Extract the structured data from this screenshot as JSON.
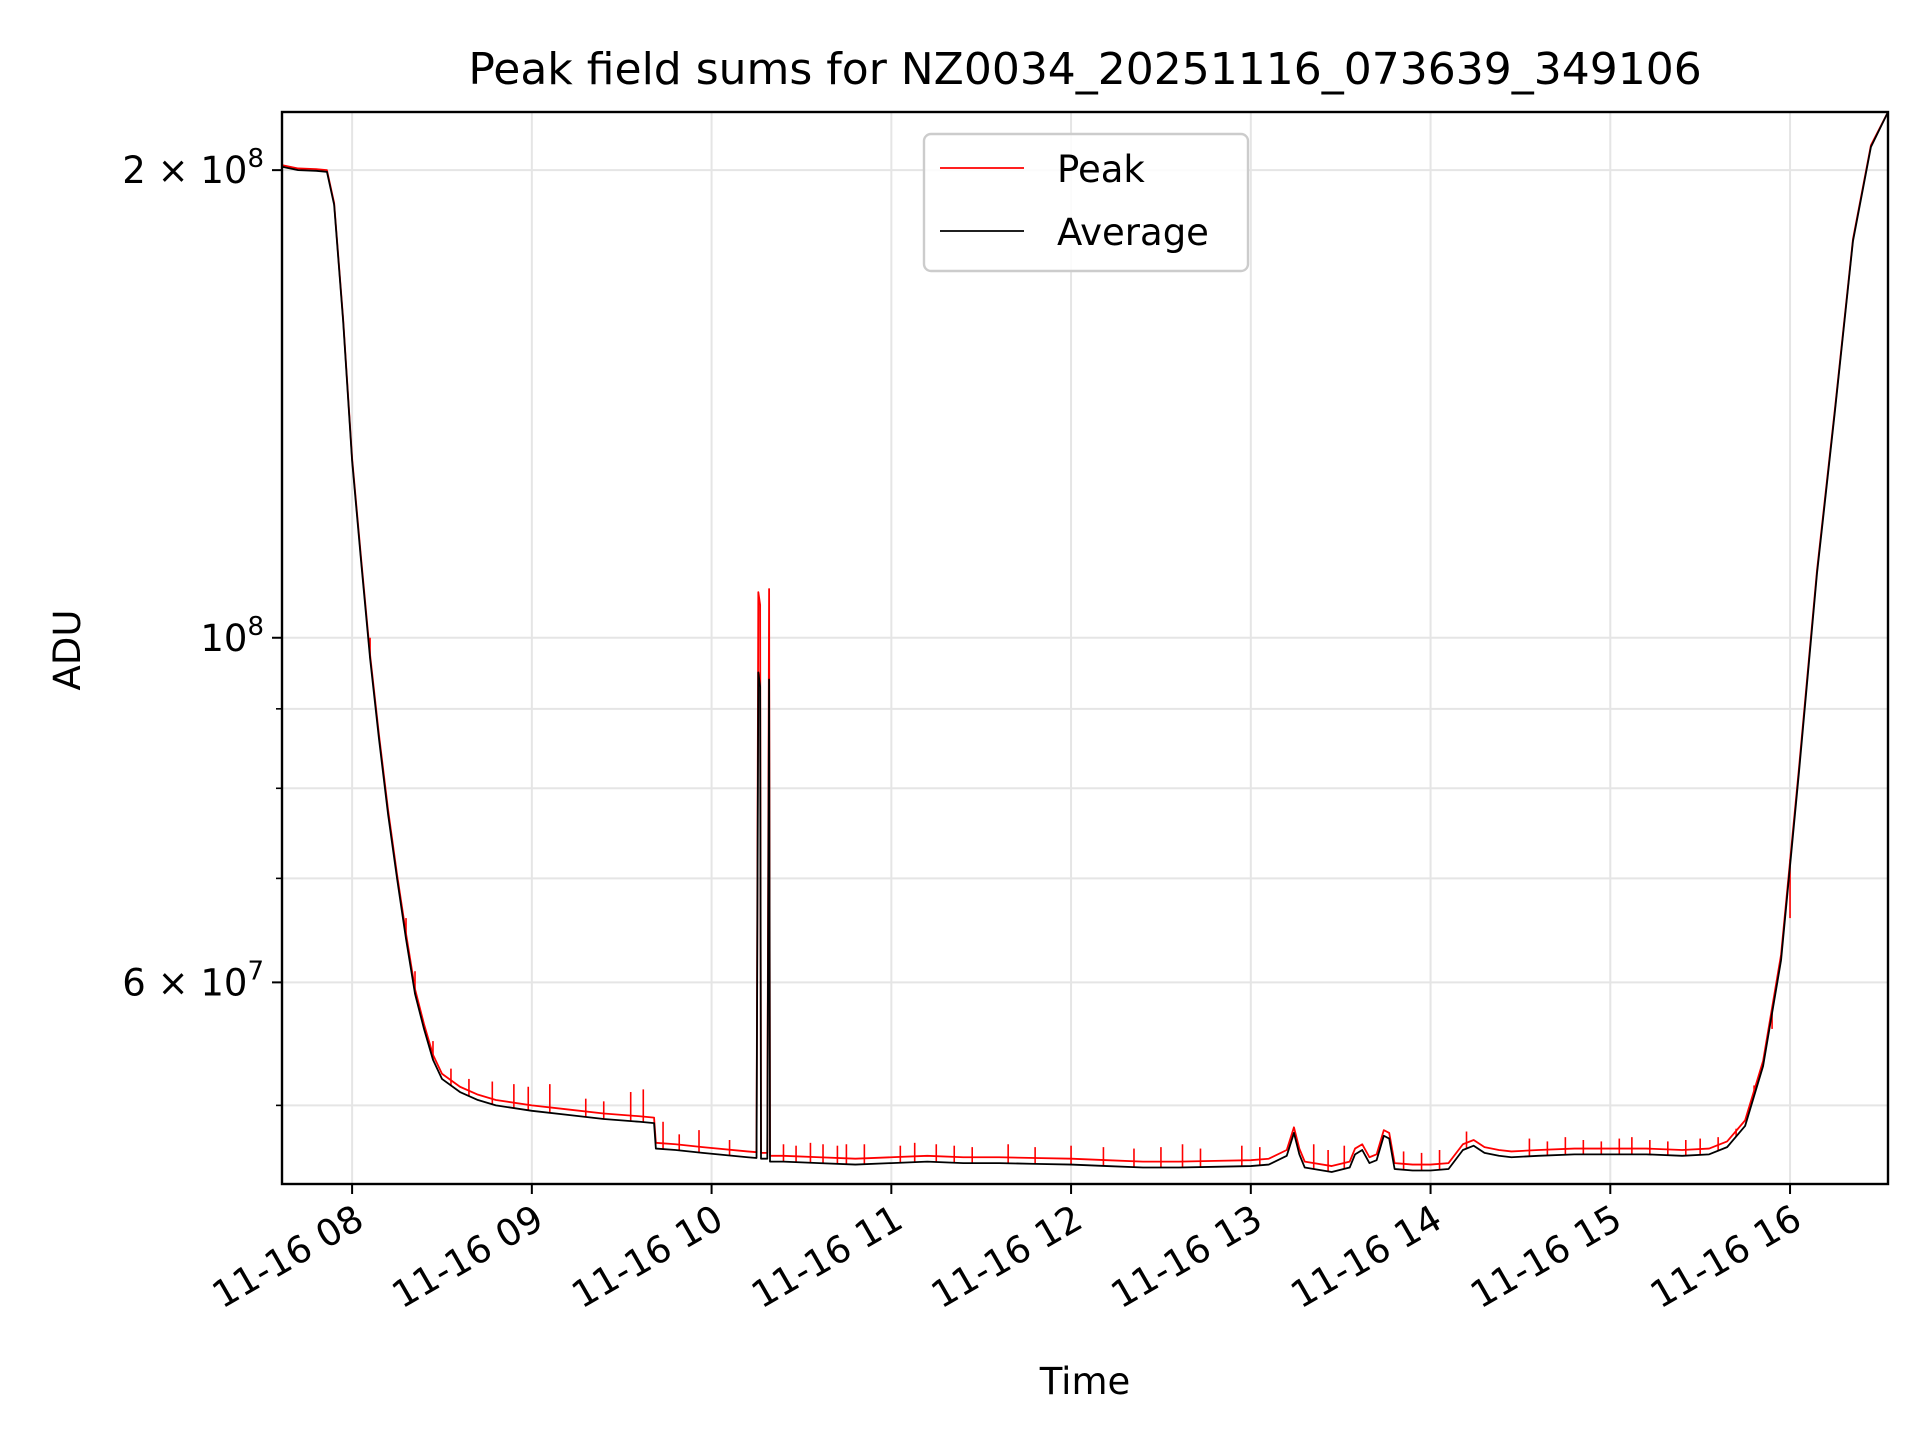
{
  "chart_data": {
    "type": "line",
    "title": "Peak field sums for NZ0034_20251116_073639_349106",
    "xlabel": "Time",
    "ylabel": "ADU",
    "y_scale": "log",
    "x_unit": "hours since 11-16 00:00",
    "xlim": [
      7.61,
      16.545
    ],
    "ylim": [
      44500000,
      218000000
    ],
    "grid": true,
    "legend_position": "upper-center",
    "x_ticks": [
      {
        "value": 8,
        "label": "11-16 08"
      },
      {
        "value": 9,
        "label": "11-16 09"
      },
      {
        "value": 10,
        "label": "11-16 10"
      },
      {
        "value": 11,
        "label": "11-16 11"
      },
      {
        "value": 12,
        "label": "11-16 12"
      },
      {
        "value": 13,
        "label": "11-16 13"
      },
      {
        "value": 14,
        "label": "11-16 14"
      },
      {
        "value": 15,
        "label": "11-16 15"
      },
      {
        "value": 16,
        "label": "11-16 16"
      }
    ],
    "y_major_ticks": [
      {
        "value": 60000000,
        "mantissa": "6 × 10",
        "exponent": "7"
      },
      {
        "value": 100000000,
        "mantissa": "10",
        "exponent": "8"
      },
      {
        "value": 200000000,
        "mantissa": "2 × 10",
        "exponent": "8"
      }
    ],
    "y_minor_ticks": [
      50000000,
      70000000,
      80000000,
      90000000
    ],
    "series": [
      {
        "name": "Average",
        "color": "#000000",
        "points": [
          [
            7.61,
            201000000
          ],
          [
            7.7,
            200000000
          ],
          [
            7.8,
            199800000
          ],
          [
            7.86,
            199500000
          ],
          [
            7.9,
            190000000
          ],
          [
            7.95,
            160000000
          ],
          [
            8.0,
            130000000
          ],
          [
            8.05,
            112000000
          ],
          [
            8.1,
            97000000
          ],
          [
            8.15,
            86000000
          ],
          [
            8.2,
            77000000
          ],
          [
            8.25,
            70000000
          ],
          [
            8.3,
            64000000
          ],
          [
            8.35,
            59000000
          ],
          [
            8.4,
            56000000
          ],
          [
            8.45,
            53500000
          ],
          [
            8.5,
            52000000
          ],
          [
            8.6,
            51000000
          ],
          [
            8.7,
            50400000
          ],
          [
            8.8,
            50000000
          ],
          [
            9.0,
            49600000
          ],
          [
            9.2,
            49300000
          ],
          [
            9.4,
            49000000
          ],
          [
            9.6,
            48800000
          ],
          [
            9.68,
            48700000
          ],
          [
            9.69,
            46900000
          ],
          [
            9.8,
            46800000
          ],
          [
            9.95,
            46600000
          ],
          [
            10.2,
            46300000
          ],
          [
            10.25,
            46250000
          ],
          [
            10.26,
            95000000
          ],
          [
            10.27,
            93000000
          ],
          [
            10.275,
            46200000
          ],
          [
            10.31,
            46200000
          ],
          [
            10.32,
            94000000
          ],
          [
            10.325,
            46000000
          ],
          [
            10.4,
            46000000
          ],
          [
            10.6,
            45900000
          ],
          [
            10.8,
            45800000
          ],
          [
            11.0,
            45900000
          ],
          [
            11.2,
            46000000
          ],
          [
            11.4,
            45900000
          ],
          [
            11.6,
            45900000
          ],
          [
            11.8,
            45850000
          ],
          [
            12.0,
            45800000
          ],
          [
            12.2,
            45700000
          ],
          [
            12.4,
            45600000
          ],
          [
            12.6,
            45600000
          ],
          [
            12.8,
            45650000
          ],
          [
            13.0,
            45700000
          ],
          [
            13.1,
            45800000
          ],
          [
            13.2,
            46400000
          ],
          [
            13.24,
            48000000
          ],
          [
            13.27,
            46500000
          ],
          [
            13.3,
            45600000
          ],
          [
            13.45,
            45300000
          ],
          [
            13.55,
            45600000
          ],
          [
            13.58,
            46500000
          ],
          [
            13.62,
            46800000
          ],
          [
            13.66,
            45900000
          ],
          [
            13.7,
            46100000
          ],
          [
            13.74,
            47800000
          ],
          [
            13.77,
            47600000
          ],
          [
            13.8,
            45500000
          ],
          [
            13.9,
            45400000
          ],
          [
            14.0,
            45400000
          ],
          [
            14.1,
            45500000
          ],
          [
            14.18,
            46800000
          ],
          [
            14.24,
            47100000
          ],
          [
            14.3,
            46600000
          ],
          [
            14.38,
            46400000
          ],
          [
            14.45,
            46300000
          ],
          [
            14.6,
            46400000
          ],
          [
            14.8,
            46500000
          ],
          [
            15.0,
            46500000
          ],
          [
            15.2,
            46500000
          ],
          [
            15.4,
            46400000
          ],
          [
            15.55,
            46500000
          ],
          [
            15.65,
            47000000
          ],
          [
            15.75,
            48500000
          ],
          [
            15.85,
            53000000
          ],
          [
            15.95,
            62000000
          ],
          [
            16.05,
            82000000
          ],
          [
            16.15,
            110000000
          ],
          [
            16.25,
            140000000
          ],
          [
            16.35,
            180000000
          ],
          [
            16.45,
            207000000
          ],
          [
            16.545,
            218000000
          ]
        ]
      },
      {
        "name": "Peak",
        "color": "#ff0000",
        "points": [
          [
            7.61,
            201500000
          ],
          [
            7.7,
            200500000
          ],
          [
            7.8,
            200300000
          ],
          [
            7.86,
            200000000
          ],
          [
            7.9,
            190500000
          ],
          [
            7.95,
            160500000
          ],
          [
            8.0,
            130500000
          ],
          [
            8.05,
            112500000
          ],
          [
            8.1,
            97500000
          ],
          [
            8.15,
            86500000
          ],
          [
            8.2,
            77500000
          ],
          [
            8.25,
            70400000
          ],
          [
            8.3,
            64500000
          ],
          [
            8.35,
            59400000
          ],
          [
            8.4,
            56400000
          ],
          [
            8.45,
            53900000
          ],
          [
            8.5,
            52400000
          ],
          [
            8.6,
            51400000
          ],
          [
            8.7,
            50800000
          ],
          [
            8.8,
            50400000
          ],
          [
            9.0,
            50000000
          ],
          [
            9.2,
            49700000
          ],
          [
            9.4,
            49400000
          ],
          [
            9.6,
            49200000
          ],
          [
            9.68,
            49100000
          ],
          [
            9.69,
            47300000
          ],
          [
            9.8,
            47200000
          ],
          [
            9.95,
            47000000
          ],
          [
            10.2,
            46700000
          ],
          [
            10.25,
            46650000
          ],
          [
            10.26,
            107000000
          ],
          [
            10.27,
            105000000
          ],
          [
            10.275,
            46600000
          ],
          [
            10.31,
            46600000
          ],
          [
            10.32,
            107500000
          ],
          [
            10.325,
            46400000
          ],
          [
            10.4,
            46400000
          ],
          [
            10.6,
            46300000
          ],
          [
            10.8,
            46200000
          ],
          [
            11.0,
            46300000
          ],
          [
            11.2,
            46400000
          ],
          [
            11.4,
            46300000
          ],
          [
            11.6,
            46300000
          ],
          [
            11.8,
            46250000
          ],
          [
            12.0,
            46200000
          ],
          [
            12.2,
            46100000
          ],
          [
            12.4,
            46000000
          ],
          [
            12.6,
            46000000
          ],
          [
            12.8,
            46050000
          ],
          [
            13.0,
            46100000
          ],
          [
            13.1,
            46200000
          ],
          [
            13.2,
            46800000
          ],
          [
            13.24,
            48400000
          ],
          [
            13.27,
            46900000
          ],
          [
            13.3,
            46000000
          ],
          [
            13.45,
            45700000
          ],
          [
            13.55,
            46000000
          ],
          [
            13.58,
            46900000
          ],
          [
            13.62,
            47200000
          ],
          [
            13.66,
            46300000
          ],
          [
            13.7,
            46500000
          ],
          [
            13.74,
            48200000
          ],
          [
            13.77,
            48000000
          ],
          [
            13.8,
            45900000
          ],
          [
            13.9,
            45800000
          ],
          [
            14.0,
            45800000
          ],
          [
            14.1,
            45900000
          ],
          [
            14.18,
            47200000
          ],
          [
            14.24,
            47500000
          ],
          [
            14.3,
            47000000
          ],
          [
            14.38,
            46800000
          ],
          [
            14.45,
            46700000
          ],
          [
            14.6,
            46800000
          ],
          [
            14.8,
            46900000
          ],
          [
            15.0,
            46900000
          ],
          [
            15.2,
            46900000
          ],
          [
            15.4,
            46800000
          ],
          [
            15.55,
            46900000
          ],
          [
            15.65,
            47400000
          ],
          [
            15.75,
            48900000
          ],
          [
            15.85,
            53400000
          ],
          [
            15.95,
            62500000
          ],
          [
            16.05,
            82500000
          ],
          [
            16.15,
            110500000
          ],
          [
            16.25,
            140500000
          ],
          [
            16.35,
            180500000
          ],
          [
            16.45,
            207500000
          ],
          [
            16.545,
            218000000
          ]
        ]
      }
    ],
    "peak_spikes": [
      [
        8.1,
        100000000
      ],
      [
        8.3,
        66000000
      ],
      [
        8.35,
        61000000
      ],
      [
        8.45,
        55000000
      ],
      [
        8.55,
        52800000
      ],
      [
        8.65,
        52000000
      ],
      [
        8.78,
        51800000
      ],
      [
        8.9,
        51600000
      ],
      [
        8.98,
        51400000
      ],
      [
        9.1,
        51600000
      ],
      [
        9.3,
        50500000
      ],
      [
        9.4,
        50300000
      ],
      [
        9.55,
        51000000
      ],
      [
        9.62,
        51200000
      ],
      [
        9.73,
        48800000
      ],
      [
        9.82,
        47900000
      ],
      [
        9.93,
        48200000
      ],
      [
        10.1,
        47500000
      ],
      [
        10.4,
        47200000
      ],
      [
        10.47,
        47100000
      ],
      [
        10.55,
        47300000
      ],
      [
        10.62,
        47200000
      ],
      [
        10.7,
        47100000
      ],
      [
        10.75,
        47200000
      ],
      [
        10.85,
        47200000
      ],
      [
        11.05,
        47100000
      ],
      [
        11.13,
        47300000
      ],
      [
        11.25,
        47200000
      ],
      [
        11.35,
        47100000
      ],
      [
        11.45,
        47000000
      ],
      [
        11.65,
        47200000
      ],
      [
        11.8,
        47000000
      ],
      [
        12.0,
        47100000
      ],
      [
        12.18,
        47000000
      ],
      [
        12.35,
        46900000
      ],
      [
        12.5,
        47000000
      ],
      [
        12.62,
        47200000
      ],
      [
        12.72,
        46900000
      ],
      [
        12.95,
        47100000
      ],
      [
        13.05,
        47000000
      ],
      [
        13.35,
        47200000
      ],
      [
        13.43,
        46800000
      ],
      [
        13.52,
        47100000
      ],
      [
        13.85,
        46700000
      ],
      [
        13.95,
        46600000
      ],
      [
        14.05,
        46800000
      ],
      [
        14.2,
        48100000
      ],
      [
        14.55,
        47600000
      ],
      [
        14.65,
        47400000
      ],
      [
        14.75,
        47700000
      ],
      [
        14.85,
        47500000
      ],
      [
        14.95,
        47400000
      ],
      [
        15.05,
        47600000
      ],
      [
        15.12,
        47700000
      ],
      [
        15.22,
        47500000
      ],
      [
        15.32,
        47400000
      ],
      [
        15.42,
        47500000
      ],
      [
        15.5,
        47600000
      ],
      [
        15.6,
        47700000
      ],
      [
        15.7,
        48300000
      ],
      [
        15.8,
        51500000
      ],
      [
        15.9,
        56000000
      ],
      [
        16.0,
        66000000
      ]
    ]
  }
}
